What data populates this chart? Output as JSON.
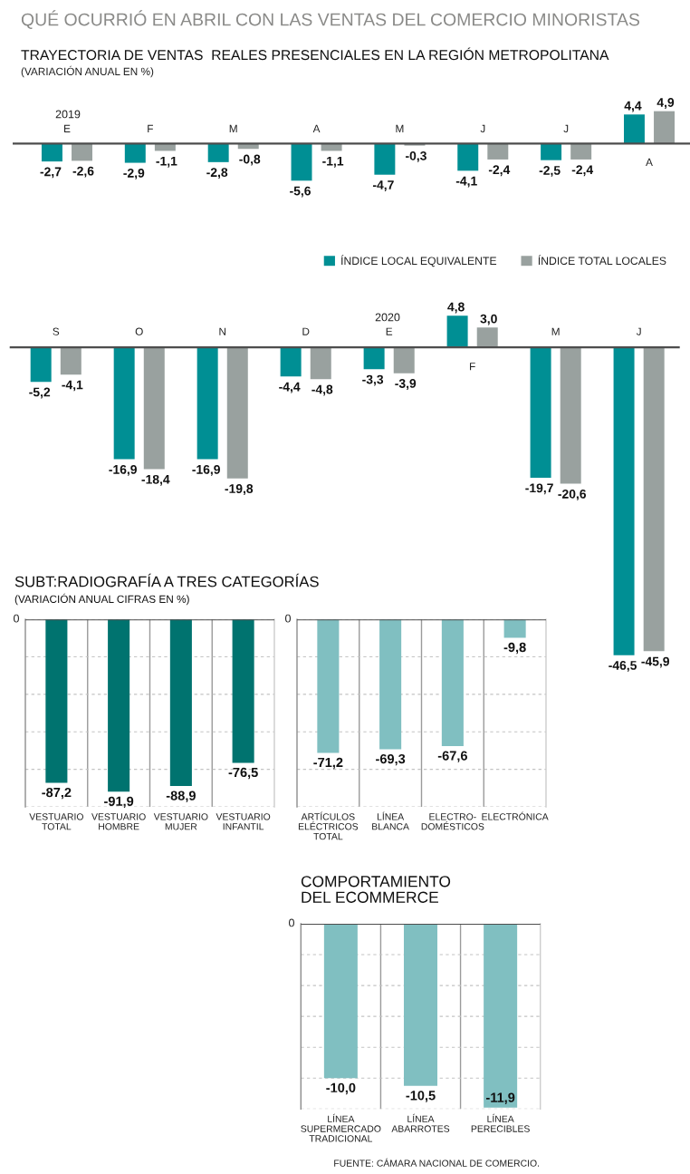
{
  "chart_data": [
    {
      "type": "bar",
      "title": "QUÉ OCURRIÓ EN ABRIL CON LAS VENTAS DEL COMERCIO MINORISTAS",
      "subtitle": "TRAYECTORIA DE VENTAS  REALES PRESENCIALES EN LA REGIÓN METROPOLITANA",
      "annotations": [
        "(VARIACIÓN ANUAL EN %)",
        "2019"
      ],
      "categories": [
        "E",
        "F",
        "M",
        "A",
        "M",
        "J",
        "J",
        "A"
      ],
      "series": [
        {
          "color": "#008f94",
          "values": [
            -2.7,
            -2.9,
            -2.8,
            -5.6,
            -4.7,
            -4.1,
            -2.5,
            4.4
          ],
          "value_labels": [
            "-2,7",
            "-2,9",
            "-2,8",
            "-5,6",
            "-4,7",
            "-4,1",
            "-2,5",
            "4,4"
          ]
        },
        {
          "color": "#99a19f",
          "values": [
            -2.6,
            -1.1,
            -0.8,
            -1.1,
            -0.3,
            -2.4,
            -2.4,
            4.9
          ],
          "value_labels": [
            "-2,6",
            "-1,1",
            "-0,8",
            "-1,1",
            "-0,3",
            "-2,4",
            "-2,4",
            "4,9"
          ]
        }
      ],
      "tick_labels": "x"
    },
    {
      "type": "bar",
      "annotations": [
        "2020"
      ],
      "categories": [
        "S",
        "O",
        "N",
        "D",
        "E",
        "F",
        "M",
        "J"
      ],
      "series": [
        {
          "name": "ÍNDICE LOCAL EQUIVALENTE",
          "color": "#008f94",
          "values": [
            -5.2,
            -16.9,
            -16.9,
            -4.4,
            -3.3,
            4.8,
            -19.7,
            -46.5
          ],
          "value_labels": [
            "-5,2",
            "-16,9",
            "-16,9",
            "-4,4",
            "-3,3",
            "4,8",
            "-19,7",
            "-46,5"
          ]
        },
        {
          "name": "ÍNDICE TOTAL LOCALES",
          "color": "#99a19f",
          "values": [
            -4.1,
            -18.4,
            -19.8,
            -4.8,
            -3.9,
            3.0,
            -20.6,
            -45.9
          ],
          "value_labels": [
            "-4,1",
            "-18,4",
            "-19,8",
            "-4,8",
            "-3,9",
            "3,0",
            "-20,6",
            "-45,9"
          ]
        }
      ],
      "legend": "top right",
      "tick_labels": "x"
    },
    {
      "type": "bar",
      "title": "SUBT:RADIOGRAFÍA A TRES CATEGORÍAS",
      "subtitle": "(VARIACIÓN ANUAL CIFRAS EN %)",
      "annotations": [
        "0"
      ],
      "categories": [
        "VESTUARIO\nTOTAL",
        "VESTUARIO\nHOMBRE",
        "VESTUARIO\nMUJER",
        "VESTUARIO\nINFANTIL"
      ],
      "values": [
        -87.2,
        -91.9,
        -88.9,
        -76.5
      ],
      "value_labels": [
        "-87,2",
        "-91,9",
        "-88,9",
        "-76,5"
      ],
      "color": "#00736f",
      "grid": true,
      "tick_labels": "x"
    },
    {
      "type": "bar",
      "annotations": [
        "0"
      ],
      "categories": [
        "ARTÍCULOS\nELÉCTRICOS\nTOTAL",
        "LÍNEA\nBLANCA",
        "ELECTRO-\nDOMÉSTICOS",
        "ELECTRÓNICA"
      ],
      "values": [
        -71.2,
        -69.3,
        -67.6,
        -9.8
      ],
      "value_labels": [
        "-71,2",
        "-69,3",
        "-67,6",
        "-9,8"
      ],
      "color": "#80bfc1",
      "grid": true,
      "tick_labels": "x"
    },
    {
      "type": "bar",
      "title": "COMPORTAMIENTO\nDEL ECOMMERCE",
      "annotations": [
        "0",
        "FUENTE: CÁMARA NACIONAL DE COMERCIO."
      ],
      "categories": [
        "LÍNEA\nSUPERMERCADO\nTRADICIONAL",
        "LÍNEA\nABARROTES",
        "LÍNEA\nPERECIBLES"
      ],
      "values": [
        -10.0,
        -10.5,
        -11.9
      ],
      "value_labels": [
        "-10,0",
        "-10,5",
        "-11,9"
      ],
      "color": "#80bfc1",
      "grid": true,
      "tick_labels": "x"
    }
  ]
}
